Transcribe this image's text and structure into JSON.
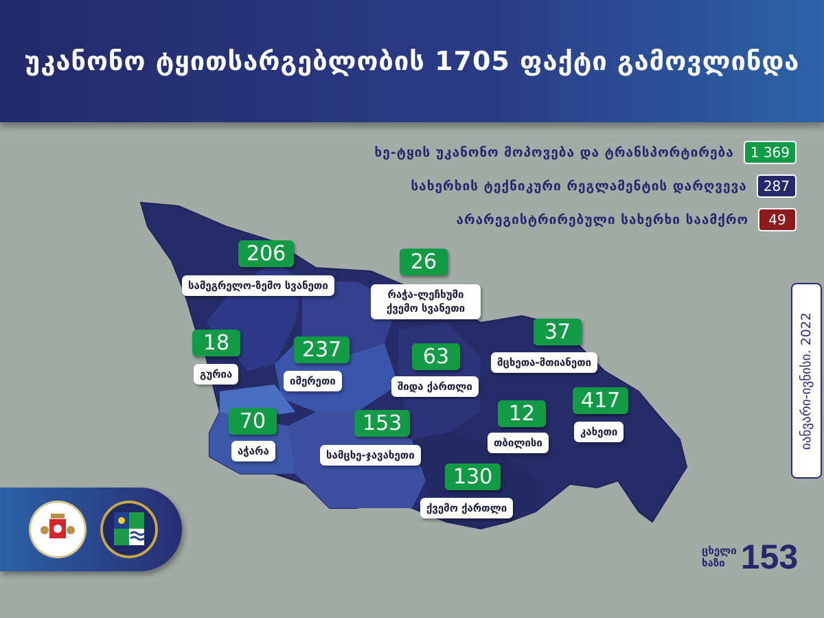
{
  "title": "უკანონო ტყითსარგებლობის 1705 ფაქტი გამოვლინდა",
  "legend": [
    {
      "label": "ხე-ტყის უკანონო მოპოვება და ტრანსპორტირება",
      "value": "1 369",
      "color": "#139a47"
    },
    {
      "label": "სახერხის ტექნიკური რეგლამენტის დარღვევა",
      "value": "287",
      "color": "#25296b"
    },
    {
      "label": "არარეგისტრირებული სახერხი საამქრო",
      "value": "49",
      "color": "#8e1b1b"
    }
  ],
  "regions": [
    {
      "name": "სამეგრელო-ზემო სვანეთი",
      "value": "206"
    },
    {
      "name": "რაჭა-ლეჩხუმი ქვემო სვანეთი",
      "value": "26"
    },
    {
      "name": "გურია",
      "value": "18"
    },
    {
      "name": "იმერეთი",
      "value": "237"
    },
    {
      "name": "შიდა ქართლი",
      "value": "63"
    },
    {
      "name": "მცხეთა-მთიანეთი",
      "value": "37"
    },
    {
      "name": "აჭარა",
      "value": "70"
    },
    {
      "name": "სამცხე-ჯავახეთი",
      "value": "153"
    },
    {
      "name": "თბილისი",
      "value": "12"
    },
    {
      "name": "კახეთი",
      "value": "417"
    },
    {
      "name": "ქვემო ქართლი",
      "value": "130"
    }
  ],
  "period": "იანვარი-ივნისი. 2022",
  "hotline": {
    "label_line1": "ცხელი",
    "label_line2": "ხაზი",
    "number": "153"
  },
  "logos": {
    "ministry": "Ministry of Environmental Protection and Agriculture of Georgia"
  },
  "colors": {
    "accent_green": "#139a47",
    "navy": "#25296b",
    "header": "#2b3c86",
    "background": "#a3aba6"
  }
}
